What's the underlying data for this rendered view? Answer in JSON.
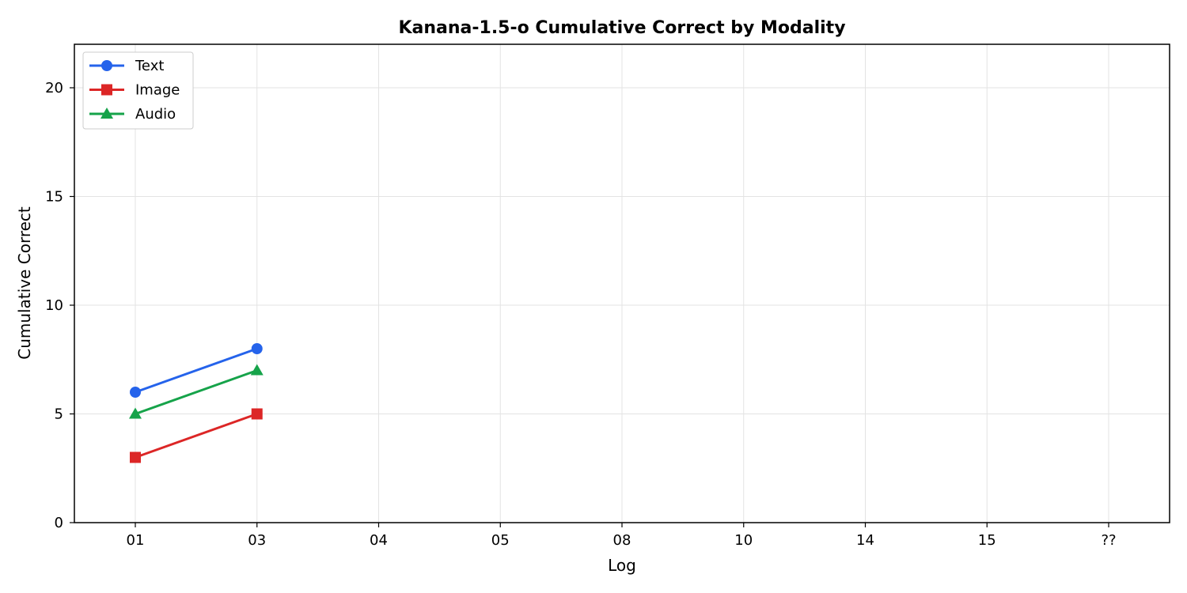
{
  "chart_data": {
    "type": "line",
    "title": "Kanana-1.5-o  Cumulative Correct by Modality",
    "xlabel": "Log",
    "ylabel": "Cumulative Correct",
    "categories": [
      "01",
      "03",
      "04",
      "05",
      "08",
      "10",
      "14",
      "15",
      "??"
    ],
    "ylim": [
      0,
      22
    ],
    "yticks": [
      0,
      5,
      10,
      15,
      20
    ],
    "grid": true,
    "legend_position": "top-left",
    "series": [
      {
        "name": "Text",
        "color": "#2563eb",
        "marker": "circle",
        "values": [
          6,
          8,
          null,
          null,
          null,
          null,
          null,
          null,
          null
        ]
      },
      {
        "name": "Image",
        "color": "#dc2626",
        "marker": "square",
        "values": [
          3,
          5,
          null,
          null,
          null,
          null,
          null,
          null,
          null
        ]
      },
      {
        "name": "Audio",
        "color": "#16a34a",
        "marker": "triangle",
        "values": [
          5,
          7,
          null,
          null,
          null,
          null,
          null,
          null,
          null
        ]
      }
    ]
  }
}
